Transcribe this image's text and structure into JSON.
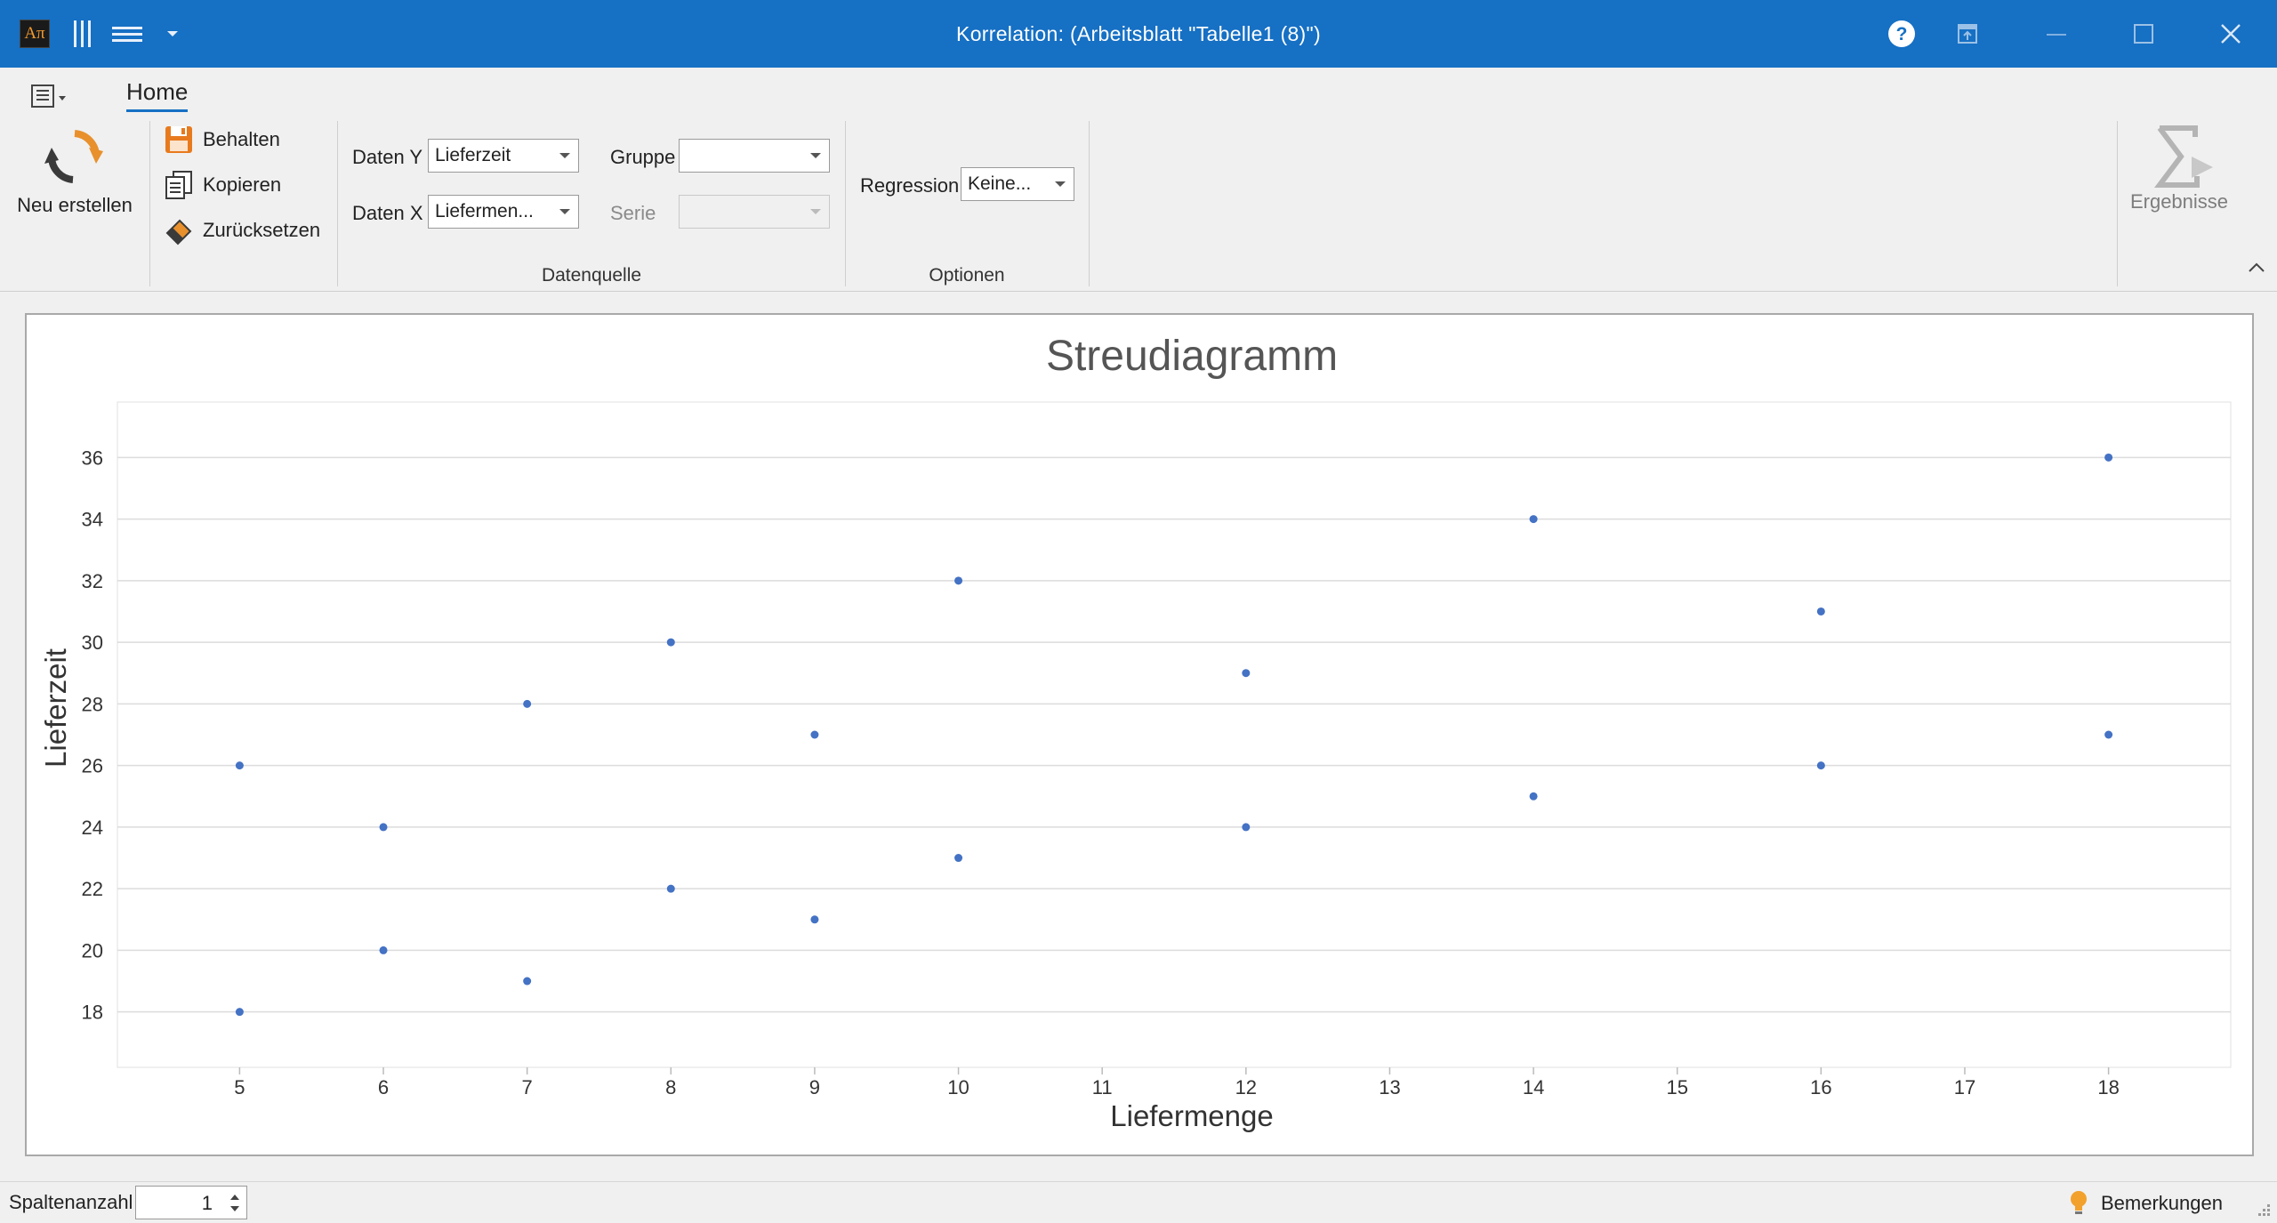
{
  "window": {
    "title": "Korrelation:  (Arbeitsblatt \"Tabelle1 (8)\")",
    "app_icon_text": "Aπ",
    "accent": "#1670c4"
  },
  "ribbon": {
    "tab": "Home",
    "buttons": {
      "new": "Neu erstellen",
      "keep": "Behalten",
      "copy": "Kopieren",
      "reset": "Zurücksetzen",
      "results": "Ergebnisse"
    },
    "datasource": {
      "caption": "Datenquelle",
      "y_label": "Daten Y",
      "y_value": "Lieferzeit",
      "x_label": "Daten X",
      "x_value": "Liefermen...",
      "group_label": "Gruppe",
      "group_value": "",
      "series_label": "Serie",
      "series_value": ""
    },
    "options": {
      "caption": "Optionen",
      "regression_label": "Regression",
      "regression_value": "Keine..."
    }
  },
  "chart_data": {
    "type": "scatter",
    "title": "Streudiagramm",
    "xlabel": "Liefermenge",
    "ylabel": "Lieferzeit",
    "xlim": [
      4.15,
      18.85
    ],
    "ylim": [
      16.2,
      37.8
    ],
    "x_ticks": [
      5,
      6,
      7,
      8,
      9,
      10,
      11,
      12,
      13,
      14,
      15,
      16,
      17,
      18
    ],
    "y_ticks": [
      18,
      20,
      22,
      24,
      26,
      28,
      30,
      32,
      34,
      36
    ],
    "grid": true,
    "point_color": "#4472c4",
    "points": [
      {
        "x": 5,
        "y": 26
      },
      {
        "x": 5,
        "y": 18
      },
      {
        "x": 6,
        "y": 24
      },
      {
        "x": 6,
        "y": 20
      },
      {
        "x": 7,
        "y": 28
      },
      {
        "x": 7,
        "y": 19
      },
      {
        "x": 8,
        "y": 30
      },
      {
        "x": 8,
        "y": 22
      },
      {
        "x": 9,
        "y": 27
      },
      {
        "x": 9,
        "y": 21
      },
      {
        "x": 10,
        "y": 32
      },
      {
        "x": 10,
        "y": 23
      },
      {
        "x": 12,
        "y": 29
      },
      {
        "x": 12,
        "y": 24
      },
      {
        "x": 14,
        "y": 34
      },
      {
        "x": 14,
        "y": 25
      },
      {
        "x": 16,
        "y": 31
      },
      {
        "x": 16,
        "y": 26
      },
      {
        "x": 18,
        "y": 36
      },
      {
        "x": 18,
        "y": 27
      }
    ]
  },
  "statusbar": {
    "columns_label": "Spaltenanzahl",
    "columns_value": "1",
    "remarks": "Bemerkungen"
  }
}
